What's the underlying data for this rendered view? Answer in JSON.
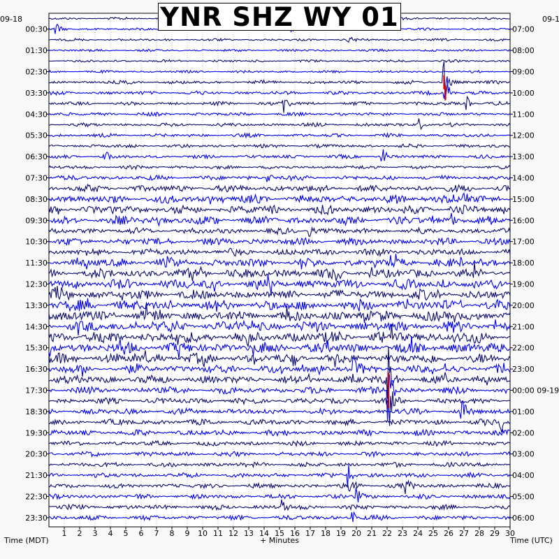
{
  "title": "YNR SHZ WY 01",
  "date_left": "09-18",
  "date_right": "09-1",
  "x_title": "+ Minutes",
  "left_axis_title": "Time (MDT)",
  "right_axis_title": "Time (UTC)",
  "colors": {
    "trace_dark": "#0a0a6e",
    "trace_light": "#0000f0",
    "event": "#e00000",
    "grid": "#9a9a9a",
    "background": "#ffffff"
  },
  "chart_data": {
    "type": "helicorder",
    "xlim": [
      0,
      30
    ],
    "x_ticks": [
      "1",
      "2",
      "3",
      "4",
      "5",
      "6",
      "7",
      "8",
      "9",
      "10",
      "11",
      "12",
      "13",
      "14",
      "15",
      "16",
      "17",
      "18",
      "19",
      "20",
      "21",
      "22",
      "23",
      "24",
      "25",
      "26",
      "27",
      "28",
      "29",
      "30"
    ],
    "left_ticks": [
      "00:30",
      "01:30",
      "02:30",
      "03:30",
      "04:30",
      "05:30",
      "06:30",
      "07:30",
      "08:30",
      "09:30",
      "10:30",
      "11:30",
      "12:30",
      "13:30",
      "14:30",
      "15:30",
      "16:30",
      "17:30",
      "18:30",
      "19:30",
      "20:30",
      "21:30",
      "22:30",
      "23:30"
    ],
    "right_ticks": [
      "07:00",
      "08:00",
      "09:00",
      "10:00",
      "11:00",
      "12:00",
      "13:00",
      "14:00",
      "15:00",
      "16:00",
      "17:00",
      "18:00",
      "19:00",
      "20:00",
      "21:00",
      "22:00",
      "23:00",
      "00:00 09-19",
      "01:00",
      "02:00",
      "03:00",
      "04:00",
      "05:00",
      "06:00"
    ],
    "traces_count": 48,
    "trace_noise_level": [
      2,
      2,
      2,
      2,
      2,
      2,
      3,
      3,
      3,
      3,
      3,
      3,
      3,
      3,
      3,
      4,
      6,
      7,
      7,
      7,
      5,
      6,
      6,
      7,
      8,
      8,
      8,
      9,
      9,
      9,
      10,
      9,
      8,
      7,
      7,
      6,
      5,
      5,
      5,
      5,
      4,
      4,
      4,
      4,
      4,
      4,
      4,
      4
    ],
    "events": [
      {
        "trace": 1,
        "minute": 0.5,
        "amp": 8
      },
      {
        "trace": 1,
        "minute": 15.8,
        "amp": 6
      },
      {
        "trace": 2,
        "minute": 19.5,
        "amp": 5
      },
      {
        "trace": 6,
        "minute": 25.7,
        "amp": 40,
        "clipped": true
      },
      {
        "trace": 7,
        "minute": 25.8,
        "amp": 40,
        "clipped": true
      },
      {
        "trace": 8,
        "minute": 15.3,
        "amp": 18
      },
      {
        "trace": 8,
        "minute": 27.2,
        "amp": 10
      },
      {
        "trace": 10,
        "minute": 24.1,
        "amp": 10
      },
      {
        "trace": 13,
        "minute": 3.6,
        "amp": 12
      },
      {
        "trace": 13,
        "minute": 21.7,
        "amp": 14
      },
      {
        "trace": 15,
        "minute": 14.3,
        "amp": 8
      },
      {
        "trace": 19,
        "minute": 26.2,
        "amp": 10
      },
      {
        "trace": 20,
        "minute": 17.0,
        "amp": 9
      },
      {
        "trace": 33,
        "minute": 19.8,
        "amp": 12
      },
      {
        "trace": 34,
        "minute": 22.1,
        "amp": 45,
        "clipped": true
      },
      {
        "trace": 35,
        "minute": 22.1,
        "amp": 45,
        "clipped": true
      },
      {
        "trace": 36,
        "minute": 22.1,
        "amp": 45,
        "clipped": true
      },
      {
        "trace": 37,
        "minute": 26.9,
        "amp": 14
      },
      {
        "trace": 38,
        "minute": 29.4,
        "amp": 16
      },
      {
        "trace": 43,
        "minute": 19.4,
        "amp": 28
      },
      {
        "trace": 44,
        "minute": 19.6,
        "amp": 26
      },
      {
        "trace": 44,
        "minute": 23.3,
        "amp": 10
      },
      {
        "trace": 45,
        "minute": 20.0,
        "amp": 14
      },
      {
        "trace": 46,
        "minute": 15.2,
        "amp": 10
      },
      {
        "trace": 47,
        "minute": 19.8,
        "amp": 8
      }
    ]
  }
}
